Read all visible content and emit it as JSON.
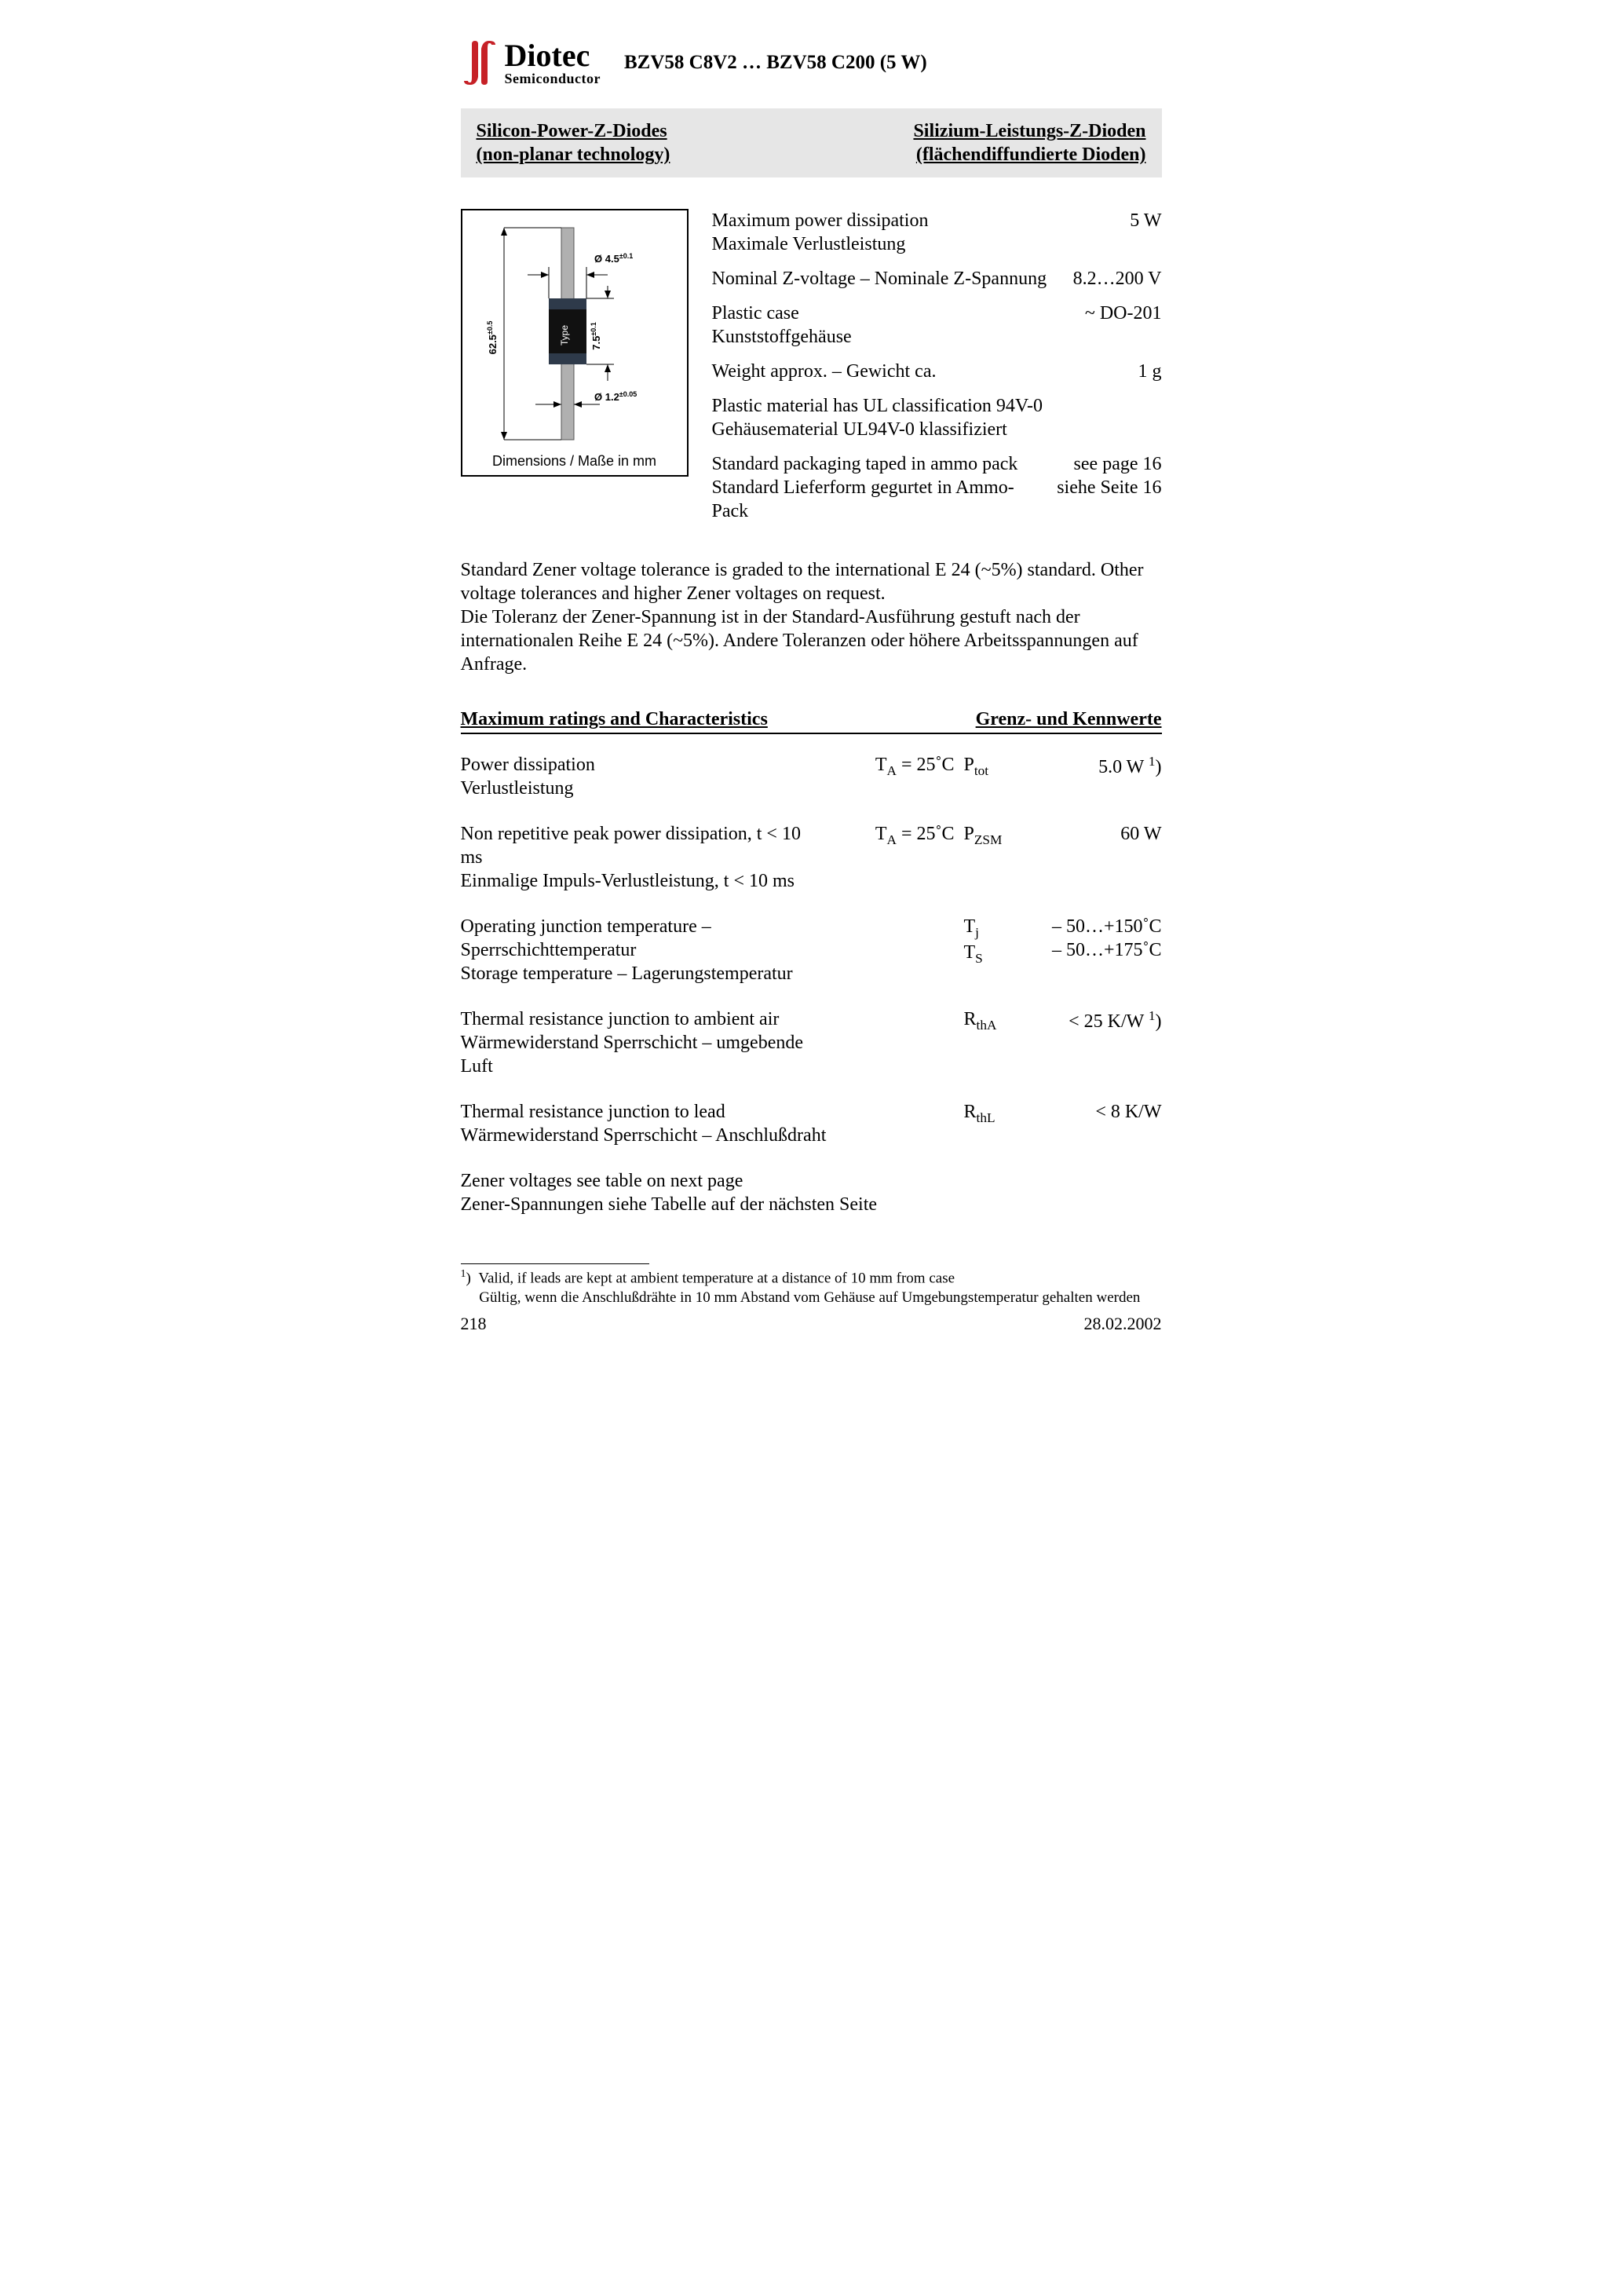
{
  "logo": {
    "brand": "Diotec",
    "sub": "Semiconductor"
  },
  "title": "BZV58 C8V2 … BZV58 C200 (5 W)",
  "band": {
    "left1": "Silicon-Power-Z-Diodes",
    "left2": "(non-planar technology)",
    "right1": "Silizium-Leistungs-Z-Dioden",
    "right2": "(flächendiffundierte Dioden)"
  },
  "diagram": {
    "dim_h": "62.5",
    "dim_h_tol": "±0.5",
    "dim_body_d": "Ø 4.5",
    "dim_body_d_tol": "±0.1",
    "dim_body_h": "7.5",
    "dim_body_h_tol": "±0.1",
    "dim_lead_d": "Ø 1.2",
    "dim_lead_d_tol": "±0.05",
    "type_label": "Type",
    "caption": "Dimensions / Maße in mm"
  },
  "specs": [
    {
      "l1": "Maximum power dissipation",
      "l2": "Maximale Verlustleistung",
      "v": "5 W"
    },
    {
      "l1": "Nominal Z-voltage – Nominale Z-Spannung",
      "l2": "",
      "v": "8.2…200 V"
    },
    {
      "l1": "Plastic case",
      "l2": "Kunststoffgehäuse",
      "v": "~ DO-201"
    },
    {
      "l1": "Weight approx. – Gewicht ca.",
      "l2": "",
      "v": "1 g"
    },
    {
      "l1": "Plastic material has UL classification 94V-0",
      "l2": "Gehäusematerial UL94V-0 klassifiziert",
      "v": ""
    },
    {
      "l1": "Standard packaging taped in ammo pack",
      "l2": "Standard Lieferform gegurtet in Ammo-Pack",
      "v1": "see page 16",
      "v2": "siehe Seite 16"
    }
  ],
  "paragraph": {
    "en": "Standard Zener voltage tolerance is graded to the international E 24 (~5%) standard. Other voltage tolerances and higher Zener voltages on request.",
    "de": "Die Toleranz der Zener-Spannung ist in der Standard-Ausführung gestuft nach der internationalen Reihe E 24 (~5%). Andere Toleranzen oder höhere Arbeitsspannungen auf Anfrage."
  },
  "ratings": {
    "head_l": "Maximum ratings and Characteristics",
    "head_r": "Grenz- und Kennwerte",
    "rows": [
      {
        "l1": "Power dissipation",
        "l2": "Verlustleistung",
        "cond": "T<sub>A</sub> = 25˚C",
        "sym": "P<sub>tot</sub>",
        "val": "5.0 W <sup>1</sup>)"
      },
      {
        "l1": "Non repetitive peak power dissipation, t < 10 ms",
        "l2": "Einmalige Impuls-Verlustleistung, t < 10 ms",
        "cond": "T<sub>A</sub> = 25˚C",
        "sym": "P<sub>ZSM</sub>",
        "val": "60 W"
      },
      {
        "l1": "Operating junction temperature – Sperrschichttemperatur",
        "l2": "Storage temperature – Lagerungstemperatur",
        "cond": "",
        "sym": "T<sub>j</sub><br>T<sub>S</sub>",
        "val": "– 50…+150˚C<br>– 50…+175˚C"
      },
      {
        "l1": "Thermal resistance junction to ambient air",
        "l2": "Wärmewiderstand Sperrschicht – umgebende Luft",
        "cond": "",
        "sym": "R<sub>thA</sub>",
        "val": "< 25 K/W <sup>1</sup>)"
      },
      {
        "l1": "Thermal resistance junction to lead",
        "l2": "Wärmewiderstand Sperrschicht – Anschlußdraht",
        "cond": "",
        "sym": "R<sub>thL</sub>",
        "val": "< 8 K/W"
      }
    ],
    "note1": "Zener voltages see table on next page",
    "note2": "Zener-Spannungen siehe Tabelle auf der nächsten Seite"
  },
  "footnote": {
    "en": "Valid, if leads are kept at ambient temperature at a distance of 10 mm from case",
    "de": "Gültig, wenn die Anschlußdrähte in 10 mm Abstand vom Gehäuse auf Umgebungstemperatur gehalten werden"
  },
  "footer": {
    "page": "218",
    "date": "28.02.2002"
  }
}
